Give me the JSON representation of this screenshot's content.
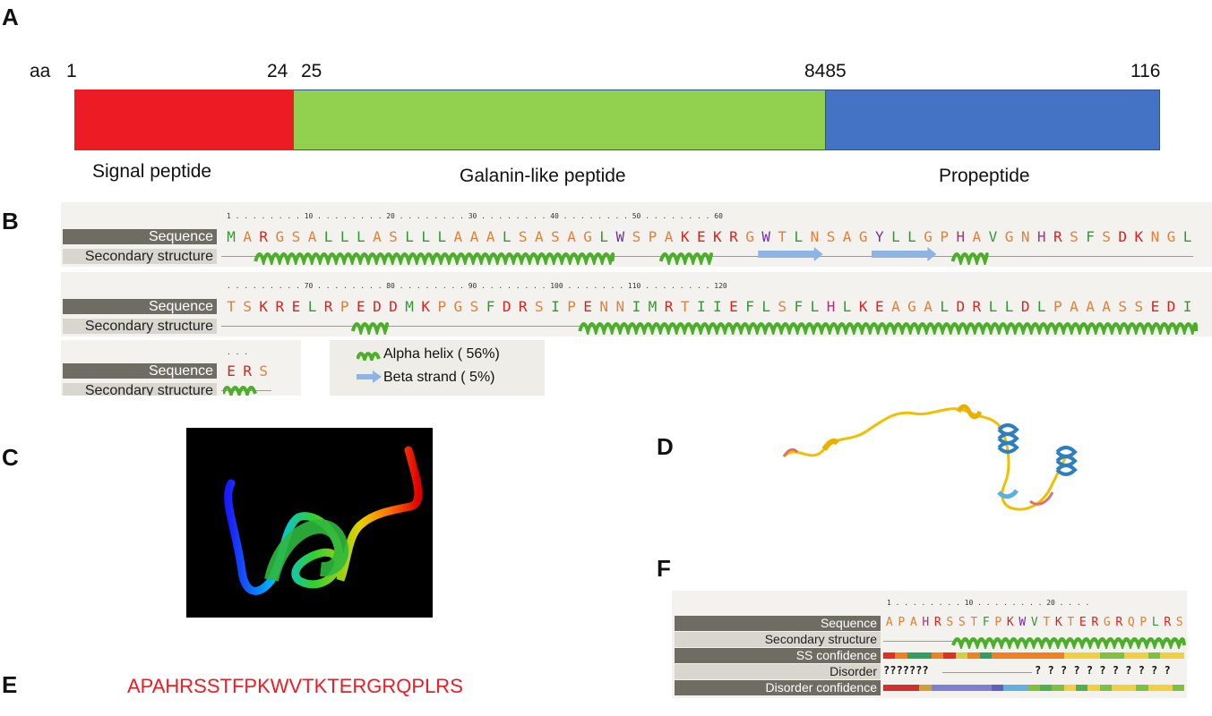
{
  "panel_labels": {
    "a": "A",
    "b": "B",
    "c": "C",
    "d": "D",
    "e": "E",
    "f": "F"
  },
  "panel_a": {
    "aa_label": "aa",
    "positions": {
      "p1": "1",
      "p24": "24",
      "p25": "25",
      "p8485": "8485",
      "p116": "116"
    },
    "segments": [
      {
        "name": "Signal peptide",
        "start": 1,
        "end": 24,
        "color": "#ed1c24"
      },
      {
        "name": "Galanin-like peptide",
        "start": 25,
        "end": 84,
        "color": "#92d050"
      },
      {
        "name": "Propeptide",
        "start": 85,
        "end": 116,
        "color": "#4472c4"
      }
    ]
  },
  "panel_b": {
    "row_labels": {
      "sequence": "Sequence",
      "ss": "Secondary structure"
    },
    "block1": {
      "ruler": "1 . . . . . . . . 10 . . . . . . . . 20 . . . . . . . . 30 . . . . . . . . 40 . . . . . . . . 50 . . . . . . . . 60",
      "sequence": "MARGSALLLASLLLAAALSASAGLWSPAKEKRGWTLNSAGYLLGPHAVGNHRSFSDKNGL"
    },
    "block2": {
      "ruler": ". . . . . . . . . 70 . . . . . . . . 80 . . . . . . . . 90 . . . . . . . . 100 . . . . . . . 110 . . . . . . . . 120",
      "sequence": "TSKRELRPEDDMKPGSFDRSIPENNIMRTIIEFLSFLHLKEAGALDRLLDLPAAASSEDI"
    },
    "block3": {
      "ruler": ". . .",
      "sequence": "ERS"
    },
    "legend": {
      "helix": "Alpha helix ( 56%)",
      "strand": "Beta strand ( 5%)"
    },
    "colors": {
      "helix": "#4caf2a",
      "strand": "#8db4e2"
    }
  },
  "panel_e": {
    "sequence": "APAHRSSTFPKWVTKTERGRQPLRS",
    "color": "#ed1c24"
  },
  "panel_f": {
    "ruler": "1 . . . . . . . . 10 . . . . . . . . 20 . . . .",
    "rows": {
      "sequence": "Sequence",
      "ss": "Secondary structure",
      "ss_conf": "SS confidence",
      "disorder": "Disorder",
      "dis_conf": "Disorder confidence"
    },
    "sequence": "APAHRSSTFPKWVTKTERGRQPLRS",
    "disorder_left": "???????",
    "disorder_right": "? ? ? ? ? ? ? ? ? ? ?"
  }
}
